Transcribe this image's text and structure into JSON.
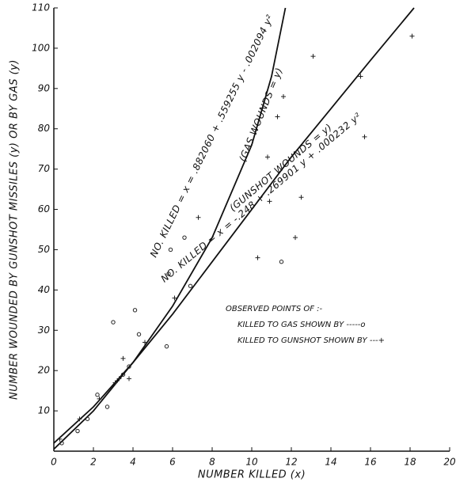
{
  "chart_data": {
    "type": "scatter",
    "xlabel": "NUMBER KILLED (x)",
    "ylabel": "NUMBER WOUNDED BY GUNSHOT MISSILES (y) OR BY GAS (y)",
    "xlim": [
      0,
      20
    ],
    "ylim": [
      0,
      110
    ],
    "xticks": [
      0,
      2,
      4,
      6,
      8,
      10,
      12,
      14,
      16,
      18,
      20
    ],
    "yticks": [
      10,
      20,
      30,
      40,
      50,
      60,
      70,
      80,
      90,
      100,
      110
    ],
    "legend_title": "OBSERVED POINTS OF :-",
    "series": [
      {
        "name": "KILLED TO GAS SHOWN BY -----o",
        "marker": "circle",
        "color": "#222",
        "x": [
          0.4,
          1.2,
          1.7,
          2.2,
          2.7,
          3.0,
          3.5,
          3.8,
          4.1,
          4.3,
          5.7,
          5.8,
          5.9,
          6.6,
          6.9,
          11.5
        ],
        "values": [
          2,
          5,
          8,
          14,
          11,
          32,
          19,
          21,
          35,
          29,
          26,
          44,
          50,
          53,
          41,
          47
        ]
      },
      {
        "name": "KILLED TO GUNSHOT SHOWN BY ---+",
        "marker": "plus",
        "color": "#222",
        "x": [
          0.3,
          1.3,
          2.3,
          3.1,
          3.3,
          3.5,
          3.8,
          4.6,
          6.1,
          7.3,
          10.3,
          10.8,
          10.9,
          11.3,
          11.6,
          12.2,
          12.5,
          13.1,
          15.5,
          15.7,
          18.1
        ],
        "values": [
          3,
          8,
          13,
          17,
          18,
          23,
          18,
          27,
          38,
          58,
          48,
          73,
          62,
          83,
          88,
          53,
          63,
          98,
          93,
          78,
          103
        ]
      }
    ],
    "curves": [
      {
        "name": "(GAS WOUNDS = y)",
        "equation": "NO. KILLED = x = .882060 + .559255 y - .002094 y²",
        "color": "#111",
        "x": [
          0,
          2,
          4,
          6,
          8,
          10,
          11,
          11.7
        ],
        "values": [
          0.5,
          10,
          22,
          36,
          53,
          76,
          93,
          110
        ]
      },
      {
        "name": "(GUNSHOT WOUNDS = y)",
        "equation": "NO. KILLED = x = -.248 + .269901 y + .000232 y²",
        "color": "#111",
        "x": [
          0,
          2,
          4,
          6,
          8,
          10,
          12,
          14,
          16,
          18.2
        ],
        "values": [
          2,
          11,
          22,
          34,
          47,
          60,
          73,
          85,
          97,
          110
        ]
      }
    ]
  }
}
